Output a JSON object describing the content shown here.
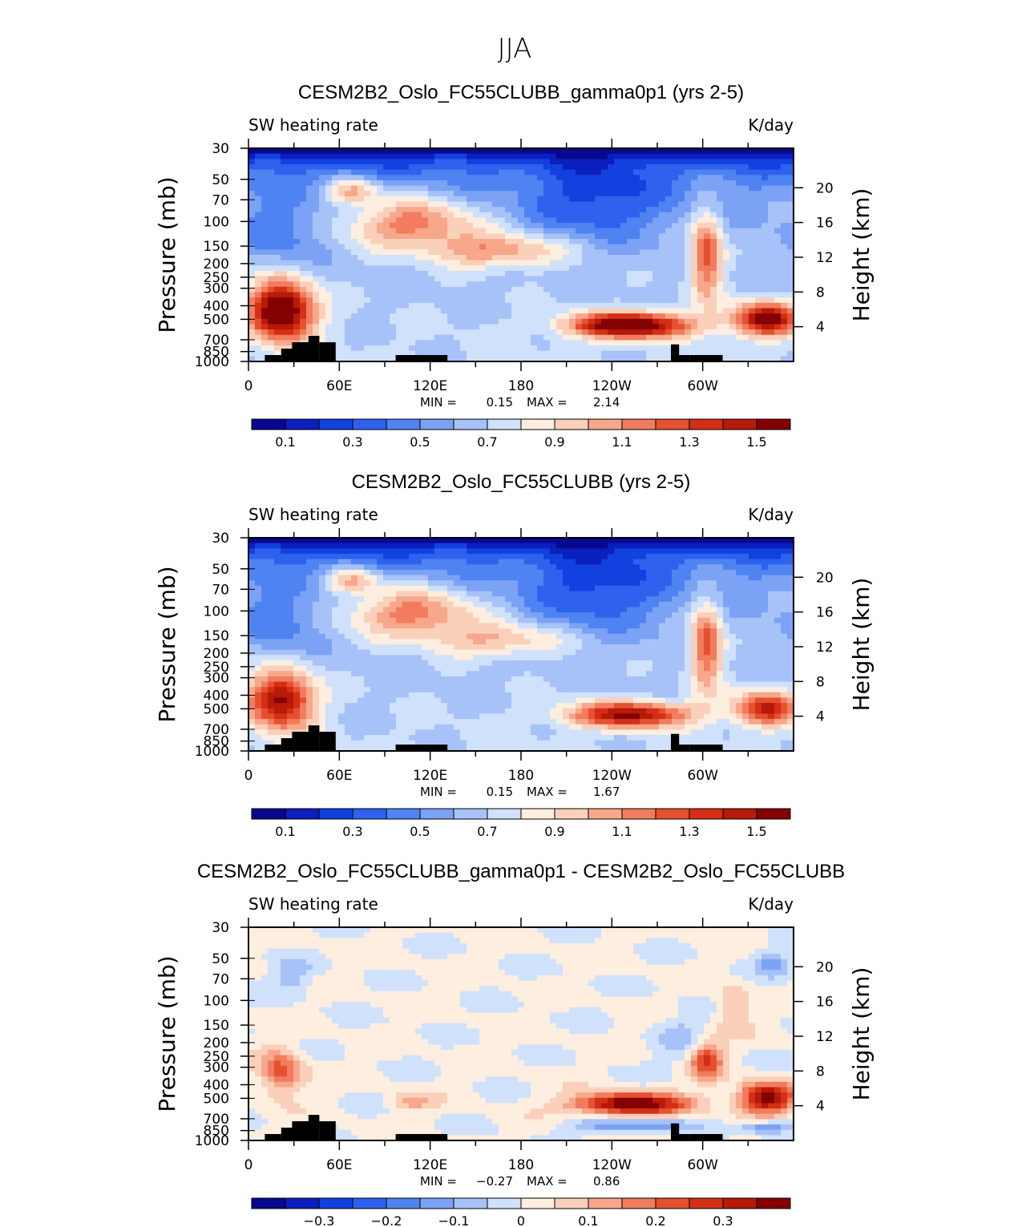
{
  "figure": {
    "title": "JJA"
  },
  "colors": {
    "sequential": [
      "#08088f",
      "#0a1fbd",
      "#1241e0",
      "#2e62ee",
      "#4f83f2",
      "#7ba2f5",
      "#a6c2f8",
      "#cfe1fb",
      "#fdeee0",
      "#fbd0bb",
      "#f7a78a",
      "#f17c5e",
      "#e5502f",
      "#d42f14",
      "#b61a08",
      "#850000"
    ],
    "diverging": [
      "#08088f",
      "#0a1fbd",
      "#1241e0",
      "#2e62ee",
      "#4f83f2",
      "#7ba2f5",
      "#a6c2f8",
      "#cfe1fb",
      "#fdeee0",
      "#fbd0bb",
      "#f7a78a",
      "#f17c5e",
      "#e5502f",
      "#d42f14",
      "#b61a08",
      "#850000"
    ],
    "terrain": "#000000"
  },
  "chart_data": [
    {
      "type": "heatmap",
      "title": "CESM2B2_Oslo_FC55CLUBB_gamma0p1 (yrs 2-5)",
      "left_label": "SW heating rate",
      "right_label": "K/day",
      "ylabel": "Pressure (mb)",
      "y2label": "Height (km)",
      "xticks": [
        "0",
        "60E",
        "120E",
        "180",
        "120W",
        "60W"
      ],
      "yticks": [
        "30",
        "50",
        "70",
        "100",
        "150",
        "200",
        "250",
        "300",
        "400",
        "500",
        "700",
        "850",
        "1000"
      ],
      "y2ticks": [
        "20",
        "16",
        "12",
        "8",
        "4"
      ],
      "min_label": "MIN =",
      "min": "0.15",
      "max_label": "MAX =",
      "max": "2.14",
      "colorbar_labels": [
        "0.1",
        "0.3",
        "0.5",
        "0.7",
        "0.9",
        "1.1",
        "1.3",
        "1.5"
      ],
      "palette": "sequential"
    },
    {
      "type": "heatmap",
      "title": "CESM2B2_Oslo_FC55CLUBB (yrs 2-5)",
      "left_label": "SW heating rate",
      "right_label": "K/day",
      "ylabel": "Pressure (mb)",
      "y2label": "Height (km)",
      "xticks": [
        "0",
        "60E",
        "120E",
        "180",
        "120W",
        "60W"
      ],
      "yticks": [
        "30",
        "50",
        "70",
        "100",
        "150",
        "200",
        "250",
        "300",
        "400",
        "500",
        "700",
        "850",
        "1000"
      ],
      "y2ticks": [
        "20",
        "16",
        "12",
        "8",
        "4"
      ],
      "min_label": "MIN =",
      "min": "0.15",
      "max_label": "MAX =",
      "max": "1.67",
      "colorbar_labels": [
        "0.1",
        "0.3",
        "0.5",
        "0.7",
        "0.9",
        "1.1",
        "1.3",
        "1.5"
      ],
      "palette": "sequential"
    },
    {
      "type": "heatmap",
      "title": "CESM2B2_Oslo_FC55CLUBB_gamma0p1 - CESM2B2_Oslo_FC55CLUBB",
      "left_label": "SW heating rate",
      "right_label": "K/day",
      "ylabel": "Pressure (mb)",
      "y2label": "Height (km)",
      "xticks": [
        "0",
        "60E",
        "120E",
        "180",
        "120W",
        "60W"
      ],
      "yticks": [
        "30",
        "50",
        "70",
        "100",
        "150",
        "200",
        "250",
        "300",
        "400",
        "500",
        "700",
        "850",
        "1000"
      ],
      "y2ticks": [
        "20",
        "16",
        "12",
        "8",
        "4"
      ],
      "min_label": "MIN =",
      "min": "−0.27",
      "max_label": "MAX =",
      "max": "0.86",
      "colorbar_labels": [
        "−0.3",
        "−0.2",
        "−0.1",
        "0",
        "0.1",
        "0.2",
        "0.3"
      ],
      "palette": "diverging"
    }
  ]
}
